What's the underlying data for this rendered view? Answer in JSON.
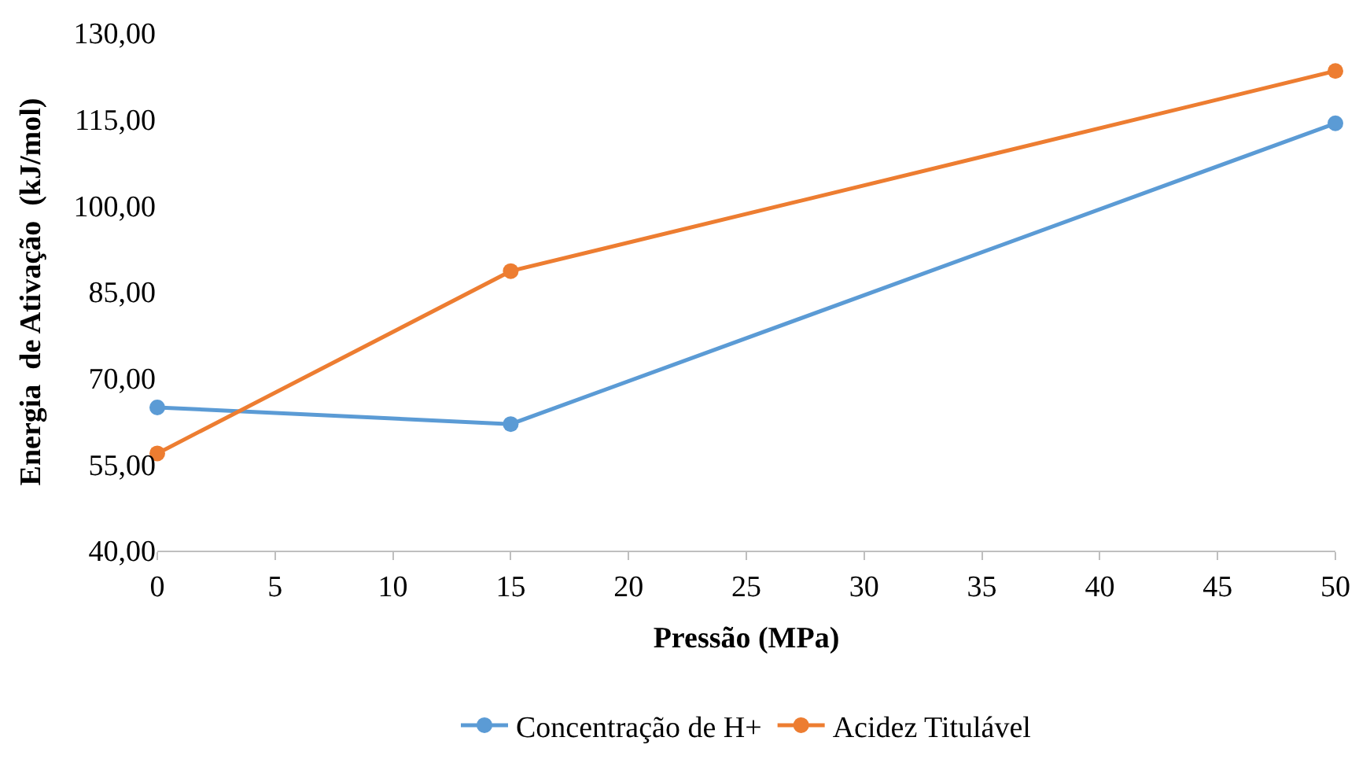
{
  "chart_data": {
    "type": "line",
    "xlabel": "Pressão (MPa)",
    "ylabel": "Energia  de Ativação  (kJ/mol)",
    "x": [
      0,
      15,
      50
    ],
    "series": [
      {
        "name": "Concentração de H+",
        "color": "#5b9bd5",
        "values": [
          64.9,
          62.0,
          114.3
        ]
      },
      {
        "name": "Acidez Titulável",
        "color": "#ed7d31",
        "values": [
          56.9,
          88.6,
          123.4
        ]
      }
    ],
    "xlim": [
      0,
      50
    ],
    "xticks": [
      0,
      5,
      10,
      15,
      20,
      25,
      30,
      35,
      40,
      45,
      50
    ],
    "ylim": [
      40,
      130
    ],
    "yticks": [
      {
        "value": 40,
        "label": "40,00"
      },
      {
        "value": 55,
        "label": "55,00"
      },
      {
        "value": 70,
        "label": "70,00"
      },
      {
        "value": 85,
        "label": "85,00"
      },
      {
        "value": 100,
        "label": "100,00"
      },
      {
        "value": 115,
        "label": "115,00"
      },
      {
        "value": 130,
        "label": "130,00"
      }
    ],
    "legend": "bottom",
    "marker": "circle",
    "line_style": "solid"
  }
}
